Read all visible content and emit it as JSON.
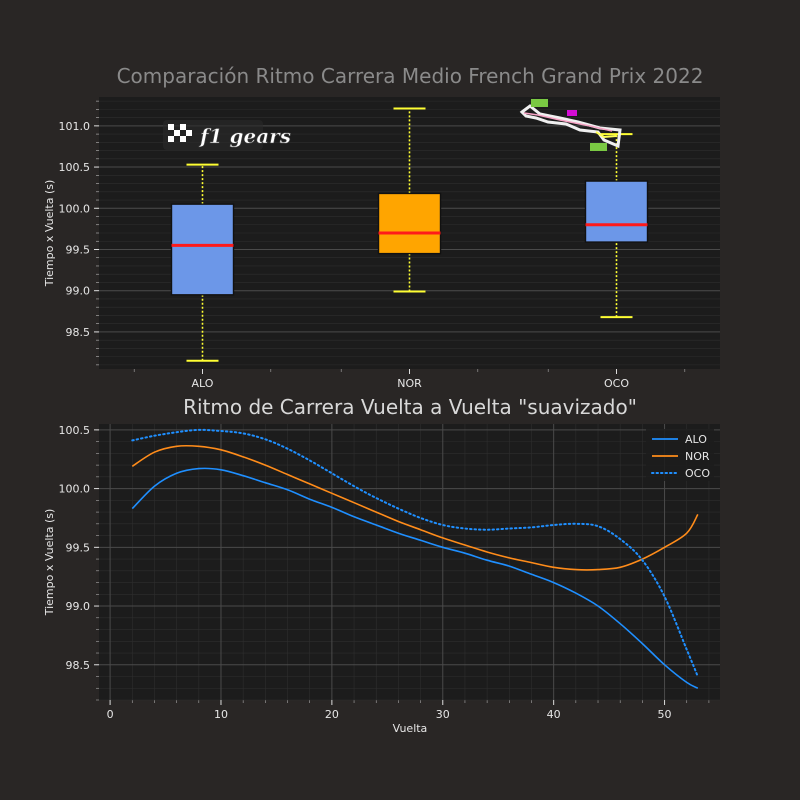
{
  "chart_data": [
    {
      "type": "box",
      "title": "Comparación Ritmo Carrera Medio French Grand Prix 2022",
      "xlabel": "",
      "ylabel": "Tiempo x Vuelta (s)",
      "ylim": [
        98.05,
        101.35
      ],
      "yticks": [
        98.5,
        99.0,
        99.5,
        100.0,
        100.5,
        101.0
      ],
      "categories": [
        "ALO",
        "NOR",
        "OCO"
      ],
      "boxes": [
        {
          "name": "ALO",
          "whisker_low": 98.15,
          "q1": 98.95,
          "median": 99.55,
          "q3": 100.05,
          "whisker_high": 100.53,
          "color": "#6c97e8"
        },
        {
          "name": "NOR",
          "whisker_low": 98.99,
          "q1": 99.45,
          "median": 99.7,
          "q3": 100.18,
          "whisker_high": 101.21,
          "color": "#ffa500"
        },
        {
          "name": "OCO",
          "whisker_low": 98.68,
          "q1": 99.59,
          "median": 99.8,
          "q3": 100.33,
          "whisker_high": 100.9,
          "color": "#6c97e8"
        }
      ],
      "median_color": "#ff1a1a",
      "whisker_color": "#ffff33",
      "grid": true,
      "logo_text": "f1 gears"
    },
    {
      "type": "line",
      "title": "Ritmo de Carrera Vuelta a Vuelta \"suavizado\"",
      "xlabel": "Vuelta",
      "ylabel": "Tiempo x Vuelta (s)",
      "xlim": [
        -1,
        55
      ],
      "ylim": [
        98.2,
        100.55
      ],
      "xticks": [
        0,
        10,
        20,
        30,
        40,
        50
      ],
      "yticks": [
        98.5,
        99.0,
        99.5,
        100.0,
        100.5
      ],
      "grid": true,
      "legend_position": "top-right",
      "series": [
        {
          "name": "ALO",
          "color": "#1f8fff",
          "style": "solid",
          "x": [
            2,
            4,
            6,
            8,
            10,
            12,
            14,
            16,
            18,
            20,
            22,
            24,
            26,
            28,
            30,
            32,
            34,
            36,
            38,
            40,
            42,
            44,
            46,
            48,
            50,
            52,
            53
          ],
          "y": [
            99.83,
            100.02,
            100.13,
            100.17,
            100.16,
            100.11,
            100.05,
            99.99,
            99.91,
            99.84,
            99.76,
            99.69,
            99.62,
            99.56,
            99.5,
            99.45,
            99.39,
            99.34,
            99.27,
            99.2,
            99.11,
            99.0,
            98.85,
            98.68,
            98.5,
            98.35,
            98.3
          ]
        },
        {
          "name": "NOR",
          "color": "#ff8c1a",
          "style": "solid",
          "x": [
            2,
            4,
            6,
            8,
            10,
            12,
            14,
            16,
            18,
            20,
            22,
            24,
            26,
            28,
            30,
            32,
            34,
            36,
            38,
            40,
            42,
            44,
            46,
            48,
            50,
            52,
            53
          ],
          "y": [
            100.19,
            100.31,
            100.36,
            100.36,
            100.33,
            100.27,
            100.2,
            100.12,
            100.04,
            99.96,
            99.88,
            99.8,
            99.72,
            99.65,
            99.58,
            99.52,
            99.46,
            99.41,
            99.37,
            99.33,
            99.31,
            99.31,
            99.33,
            99.4,
            99.5,
            99.62,
            99.78
          ]
        },
        {
          "name": "OCO",
          "color": "#1f8fff",
          "style": "dotted",
          "x": [
            2,
            4,
            6,
            8,
            10,
            12,
            14,
            16,
            18,
            20,
            22,
            24,
            26,
            28,
            30,
            32,
            34,
            36,
            38,
            40,
            42,
            44,
            46,
            48,
            50,
            52,
            53
          ],
          "y": [
            100.41,
            100.45,
            100.48,
            100.5,
            100.49,
            100.47,
            100.42,
            100.34,
            100.24,
            100.13,
            100.02,
            99.92,
            99.83,
            99.75,
            99.69,
            99.66,
            99.65,
            99.66,
            99.67,
            99.69,
            99.7,
            99.68,
            99.57,
            99.39,
            99.08,
            98.63,
            98.4
          ]
        }
      ]
    }
  ]
}
